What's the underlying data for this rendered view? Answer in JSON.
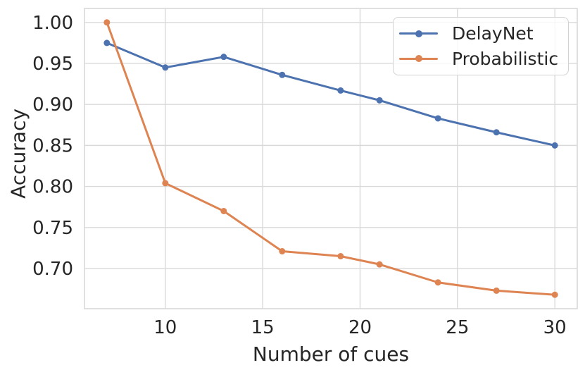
{
  "chart_data": {
    "type": "line",
    "title": "",
    "xlabel": "Number of cues",
    "ylabel": "Accuracy",
    "x": [
      7,
      10,
      13,
      16,
      19,
      21,
      24,
      27,
      30
    ],
    "series": [
      {
        "name": "DelayNet",
        "color": "#4C72B0",
        "values": [
          0.975,
          0.945,
          0.958,
          0.936,
          0.917,
          0.905,
          0.883,
          0.866,
          0.85
        ]
      },
      {
        "name": "Probabilistic",
        "color": "#DD8452",
        "values": [
          1.0,
          0.804,
          0.77,
          0.721,
          0.715,
          0.705,
          0.683,
          0.673,
          0.668
        ]
      }
    ],
    "xticks": [
      10,
      15,
      20,
      25,
      30
    ],
    "xtick_labels": [
      "10",
      "15",
      "20",
      "25",
      "30"
    ],
    "yticks": [
      0.7,
      0.75,
      0.8,
      0.85,
      0.9,
      0.95,
      1.0
    ],
    "ytick_labels": [
      "0.70",
      "0.75",
      "0.80",
      "0.85",
      "0.90",
      "0.95",
      "1.00"
    ],
    "xlim": [
      5.85,
      31.15
    ],
    "ylim": [
      0.651,
      1.017
    ],
    "grid": true,
    "grid_color": "#d9d9d9",
    "text_color": "#262626",
    "background": "#ffffff",
    "legend_position": "upper right",
    "marker": "dot"
  }
}
